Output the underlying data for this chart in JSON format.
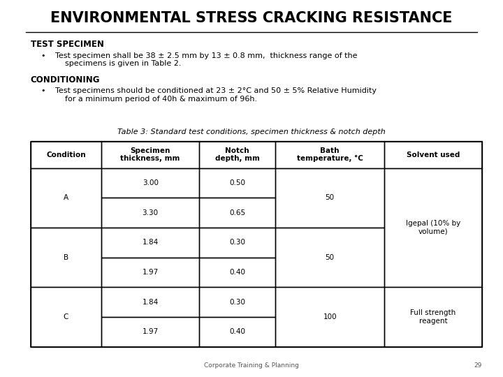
{
  "title": "ENVIRONMENTAL STRESS CRACKING RESISTANCE",
  "section1_header": "TEST SPECIMEN",
  "section2_header": "CONDITIONING",
  "table_caption": "Table 3: Standard test conditions, specimen thickness & notch depth",
  "col_headers": [
    "Condition",
    "Specimen\nthickness, mm",
    "Notch\ndepth, mm",
    "Bath\ntemperature, °C",
    "Solvent used"
  ],
  "footer_text": "Corporate Training & Planning",
  "footer_page": "29",
  "bg_color": "#FFFFFF",
  "text_color": "#000000",
  "title_fontsize": 15,
  "header_fontsize": 8.5,
  "body_fontsize": 8,
  "table_fontsize": 7.5
}
